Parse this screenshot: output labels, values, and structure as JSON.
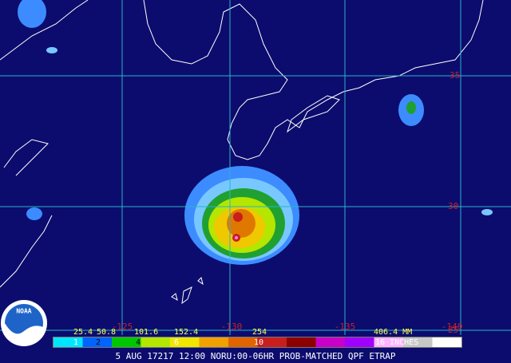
{
  "map": {
    "latitude_labels": [
      "35",
      "30",
      "25"
    ],
    "longitude_labels": [
      "-125",
      "-130",
      "-135",
      "-140"
    ],
    "legend": {
      "mm_labels": [
        "25.4",
        "50.8",
        "101.6",
        "152.4",
        "254",
        "406.4 MM"
      ],
      "inch_labels": [
        "1",
        "2",
        "4",
        "6",
        "10",
        "16 INCHES"
      ]
    },
    "footer": "5 AUG 17217 12:00 NORU:00-06HR PROB-MATCHED QPF ETRAP",
    "logo": "NOAA"
  }
}
